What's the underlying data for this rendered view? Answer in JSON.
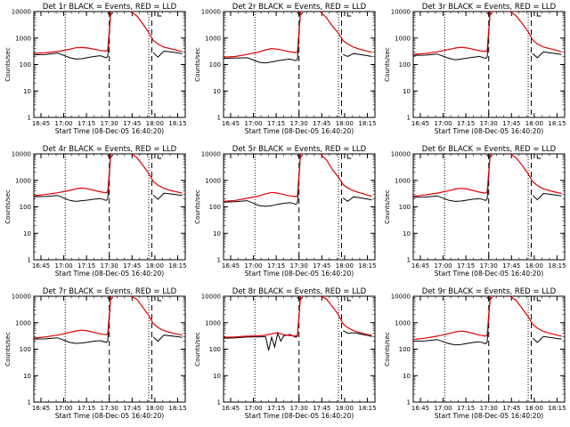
{
  "colors": {
    "events": "#000000",
    "lld": "#e00000",
    "axes": "#000000",
    "background": "#ffffff"
  },
  "common": {
    "xlabel": "Start Time (08-Dec-05 16:40:20)",
    "ylabel": "Counts/sec",
    "xticks": [
      "16:45",
      "17:00",
      "17:15",
      "17:30",
      "17:45",
      "18:00",
      "18:15"
    ],
    "yticks": [
      "1",
      "10",
      "100",
      "1000",
      "10000"
    ]
  },
  "chart_data": [
    {
      "type": "line",
      "title": "Det 1r BLACK = Events, RED = LLD",
      "xlim": [
        "16:40:20",
        "18:20"
      ],
      "ylim": [
        1,
        10000
      ],
      "yscale": "log",
      "x": [
        "16:40",
        "16:48",
        "16:56",
        "17:04",
        "17:08",
        "17:12",
        "17:16",
        "17:20",
        "17:24",
        "17:28",
        "17:29",
        "17:31",
        "17:33",
        "17:36",
        "17:40",
        "17:44",
        "17:48",
        "17:52",
        "17:56",
        "17:59",
        "18:02",
        "18:06",
        "18:10",
        "18:14",
        "18:18"
      ],
      "series": [
        {
          "name": "BLACK = Events",
          "values": [
            230,
            240,
            270,
            180,
            160,
            165,
            185,
            200,
            215,
            180,
            200,
            10000,
            10000,
            null,
            null,
            null,
            null,
            null,
            null,
            280,
            190,
            320,
            300,
            280,
            260
          ]
        },
        {
          "name": "RED = LLD",
          "values": [
            260,
            280,
            310,
            380,
            430,
            440,
            420,
            380,
            340,
            320,
            360,
            10000,
            10000,
            null,
            null,
            10000,
            7000,
            3500,
            1600,
            800,
            600,
            450,
            400,
            350,
            310
          ]
        }
      ],
      "markers": {
        "dotted": [
          "17:01",
          "17:56"
        ],
        "dashed": [
          "17:30",
          "17:58"
        ],
        "brackets": [
          "17:30",
          "18:02"
        ]
      }
    },
    {
      "type": "line",
      "title": "Det 2r BLACK = Events, RED = LLD",
      "xlim": [
        "16:40:20",
        "18:20"
      ],
      "ylim": [
        1,
        10000
      ],
      "yscale": "log",
      "x": [
        "16:40",
        "16:48",
        "16:56",
        "17:04",
        "17:08",
        "17:12",
        "17:16",
        "17:20",
        "17:24",
        "17:28",
        "17:29",
        "17:31",
        "17:33",
        "17:36",
        "17:40",
        "17:44",
        "17:48",
        "17:52",
        "17:56",
        "17:59",
        "18:02",
        "18:06",
        "18:10",
        "18:14",
        "18:18"
      ],
      "series": [
        {
          "name": "BLACK = Events",
          "values": [
            170,
            175,
            180,
            120,
            115,
            125,
            140,
            150,
            160,
            140,
            160,
            10000,
            10000,
            null,
            null,
            null,
            null,
            null,
            null,
            240,
            200,
            260,
            240,
            220,
            200
          ]
        },
        {
          "name": "RED = LLD",
          "values": [
            190,
            200,
            240,
            300,
            360,
            400,
            380,
            340,
            300,
            280,
            310,
            10000,
            10000,
            null,
            null,
            10000,
            6000,
            2800,
            1500,
            800,
            600,
            450,
            380,
            330,
            290
          ]
        }
      ],
      "markers": {
        "dotted": [
          "17:01",
          "17:56"
        ],
        "dashed": [
          "17:30",
          "17:58"
        ],
        "brackets": [
          "17:30",
          "18:02"
        ]
      }
    },
    {
      "type": "line",
      "title": "Det 3r BLACK = Events, RED = LLD",
      "xlim": [
        "16:40:20",
        "18:20"
      ],
      "ylim": [
        1,
        10000
      ],
      "yscale": "log",
      "x": [
        "16:40",
        "16:48",
        "16:56",
        "17:04",
        "17:08",
        "17:12",
        "17:16",
        "17:20",
        "17:24",
        "17:28",
        "17:29",
        "17:31",
        "17:33",
        "17:36",
        "17:40",
        "17:44",
        "17:48",
        "17:52",
        "17:56",
        "17:59",
        "18:02",
        "18:06",
        "18:10",
        "18:14",
        "18:18"
      ],
      "series": [
        {
          "name": "BLACK = Events",
          "values": [
            220,
            225,
            250,
            170,
            150,
            160,
            175,
            190,
            200,
            170,
            195,
            10000,
            10000,
            null,
            null,
            null,
            null,
            null,
            null,
            260,
            180,
            300,
            280,
            260,
            240
          ]
        },
        {
          "name": "RED = LLD",
          "values": [
            240,
            260,
            300,
            370,
            420,
            450,
            420,
            370,
            330,
            310,
            350,
            10000,
            10000,
            null,
            null,
            10000,
            7000,
            3600,
            1700,
            850,
            600,
            460,
            400,
            350,
            300
          ]
        }
      ],
      "markers": {
        "dotted": [
          "17:01",
          "17:56"
        ],
        "dashed": [
          "17:30",
          "17:58"
        ],
        "brackets": [
          "17:30",
          "18:02"
        ]
      }
    },
    {
      "type": "line",
      "title": "Det 4r BLACK = Events, RED = LLD",
      "xlim": [
        "16:40:20",
        "18:20"
      ],
      "ylim": [
        1,
        10000
      ],
      "yscale": "log",
      "x": [
        "16:40",
        "16:48",
        "16:56",
        "17:04",
        "17:08",
        "17:12",
        "17:16",
        "17:20",
        "17:24",
        "17:28",
        "17:29",
        "17:31",
        "17:33",
        "17:36",
        "17:40",
        "17:44",
        "17:48",
        "17:52",
        "17:56",
        "17:59",
        "18:02",
        "18:06",
        "18:10",
        "18:14",
        "18:18"
      ],
      "series": [
        {
          "name": "BLACK = Events",
          "values": [
            240,
            245,
            270,
            175,
            160,
            170,
            180,
            195,
            205,
            175,
            200,
            10000,
            10000,
            null,
            null,
            null,
            null,
            null,
            null,
            280,
            190,
            330,
            310,
            290,
            270
          ]
        },
        {
          "name": "RED = LLD",
          "values": [
            260,
            290,
            340,
            420,
            480,
            510,
            480,
            420,
            370,
            340,
            380,
            10000,
            10000,
            null,
            null,
            10000,
            7500,
            3800,
            1800,
            900,
            650,
            500,
            420,
            370,
            330
          ]
        }
      ],
      "markers": {
        "dotted": [
          "17:01",
          "17:56"
        ],
        "dashed": [
          "17:30",
          "17:58"
        ],
        "brackets": [
          "17:30",
          "18:02"
        ]
      }
    },
    {
      "type": "line",
      "title": "Det 5r BLACK = Events, RED = LLD",
      "xlim": [
        "16:40:20",
        "18:20"
      ],
      "ylim": [
        1,
        10000
      ],
      "yscale": "log",
      "x": [
        "16:40",
        "16:48",
        "16:56",
        "17:04",
        "17:08",
        "17:12",
        "17:16",
        "17:20",
        "17:24",
        "17:28",
        "17:29",
        "17:31",
        "17:33",
        "17:36",
        "17:40",
        "17:44",
        "17:48",
        "17:52",
        "17:56",
        "17:59",
        "18:02",
        "18:06",
        "18:10",
        "18:14",
        "18:18"
      ],
      "series": [
        {
          "name": "BLACK = Events",
          "values": [
            150,
            155,
            170,
            110,
            105,
            110,
            125,
            135,
            145,
            125,
            145,
            10000,
            10000,
            null,
            null,
            null,
            null,
            null,
            null,
            220,
            160,
            240,
            220,
            200,
            185
          ]
        },
        {
          "name": "RED = LLD",
          "values": [
            160,
            175,
            210,
            260,
            310,
            350,
            330,
            290,
            260,
            240,
            270,
            10000,
            10000,
            null,
            null,
            10000,
            6000,
            2600,
            1300,
            700,
            520,
            400,
            340,
            290,
            250
          ]
        }
      ],
      "markers": {
        "dotted": [
          "17:01",
          "17:56"
        ],
        "dashed": [
          "17:30",
          "17:58"
        ],
        "brackets": [
          "17:30",
          "18:02"
        ]
      }
    },
    {
      "type": "line",
      "title": "Det 6r BLACK = Events, RED = LLD",
      "xlim": [
        "16:40:20",
        "18:20"
      ],
      "ylim": [
        1,
        10000
      ],
      "yscale": "log",
      "x": [
        "16:40",
        "16:48",
        "16:56",
        "17:04",
        "17:08",
        "17:12",
        "17:16",
        "17:20",
        "17:24",
        "17:28",
        "17:29",
        "17:31",
        "17:33",
        "17:36",
        "17:40",
        "17:44",
        "17:48",
        "17:52",
        "17:56",
        "17:59",
        "18:02",
        "18:06",
        "18:10",
        "18:14",
        "18:18"
      ],
      "series": [
        {
          "name": "BLACK = Events",
          "values": [
            230,
            235,
            260,
            175,
            160,
            165,
            180,
            195,
            205,
            175,
            200,
            10000,
            10000,
            null,
            null,
            null,
            null,
            null,
            null,
            270,
            185,
            320,
            300,
            280,
            260
          ]
        },
        {
          "name": "RED = LLD",
          "values": [
            250,
            280,
            330,
            410,
            470,
            500,
            470,
            410,
            360,
            330,
            370,
            10000,
            10000,
            null,
            null,
            10000,
            7200,
            3700,
            1750,
            880,
            640,
            480,
            410,
            360,
            320
          ]
        }
      ],
      "markers": {
        "dotted": [
          "17:01",
          "17:56"
        ],
        "dashed": [
          "17:30",
          "17:58"
        ],
        "brackets": [
          "17:30",
          "18:02"
        ]
      }
    },
    {
      "type": "line",
      "title": "Det 7r BLACK = Events, RED = LLD",
      "xlim": [
        "16:40:20",
        "18:20"
      ],
      "ylim": [
        1,
        10000
      ],
      "yscale": "log",
      "x": [
        "16:40",
        "16:48",
        "16:56",
        "17:04",
        "17:08",
        "17:12",
        "17:16",
        "17:20",
        "17:24",
        "17:28",
        "17:29",
        "17:31",
        "17:33",
        "17:36",
        "17:40",
        "17:44",
        "17:48",
        "17:52",
        "17:56",
        "17:59",
        "18:02",
        "18:06",
        "18:10",
        "18:14",
        "18:18"
      ],
      "series": [
        {
          "name": "BLACK = Events",
          "values": [
            240,
            245,
            270,
            180,
            165,
            170,
            185,
            200,
            210,
            180,
            205,
            10000,
            10000,
            null,
            null,
            null,
            null,
            null,
            null,
            290,
            200,
            340,
            320,
            300,
            280
          ]
        },
        {
          "name": "RED = LLD",
          "values": [
            260,
            290,
            340,
            430,
            490,
            520,
            490,
            430,
            380,
            350,
            390,
            10000,
            10000,
            null,
            null,
            10000,
            7800,
            3900,
            1850,
            920,
            660,
            500,
            430,
            380,
            340
          ]
        }
      ],
      "markers": {
        "dotted": [
          "17:01",
          "17:56"
        ],
        "dashed": [
          "17:30",
          "17:58"
        ],
        "brackets": [
          "17:30",
          "18:02"
        ]
      }
    },
    {
      "type": "line",
      "title": "Det 8r BLACK = Events, RED = LLD",
      "xlim": [
        "16:40:20",
        "18:20"
      ],
      "ylim": [
        1,
        10000
      ],
      "yscale": "log",
      "x": [
        "16:40",
        "16:48",
        "16:56",
        "17:04",
        "17:08",
        "17:10",
        "17:12",
        "17:14",
        "17:16",
        "17:18",
        "17:20",
        "17:24",
        "17:28",
        "17:29",
        "17:31",
        "17:33",
        "17:36",
        "17:40",
        "17:44",
        "17:48",
        "17:52",
        "17:56",
        "17:59",
        "18:02",
        "18:06",
        "18:10",
        "18:14",
        "18:18"
      ],
      "series": [
        {
          "name": "BLACK = Events",
          "values": [
            260,
            265,
            290,
            290,
            300,
            90,
            280,
            120,
            400,
            200,
            320,
            360,
            280,
            320,
            10000,
            10000,
            null,
            null,
            null,
            null,
            null,
            null,
            500,
            400,
            420,
            380,
            340,
            300
          ]
        },
        {
          "name": "RED = LLD",
          "values": [
            280,
            290,
            310,
            320,
            340,
            360,
            380,
            400,
            420,
            380,
            350,
            330,
            310,
            350,
            10000,
            10000,
            null,
            null,
            10000,
            8000,
            4000,
            2000,
            900,
            650,
            500,
            420,
            370,
            330
          ]
        }
      ],
      "markers": {
        "dotted": [
          "17:01",
          "17:56"
        ],
        "dashed": [
          "17:30",
          "17:58"
        ],
        "brackets": [
          "17:30",
          "18:02"
        ]
      }
    },
    {
      "type": "line",
      "title": "Det 9r BLACK = Events, RED = LLD",
      "xlim": [
        "16:40:20",
        "18:20"
      ],
      "ylim": [
        1,
        10000
      ],
      "yscale": "log",
      "x": [
        "16:40",
        "16:48",
        "16:56",
        "17:04",
        "17:08",
        "17:12",
        "17:16",
        "17:20",
        "17:24",
        "17:28",
        "17:29",
        "17:31",
        "17:33",
        "17:36",
        "17:40",
        "17:44",
        "17:48",
        "17:52",
        "17:56",
        "17:59",
        "18:02",
        "18:06",
        "18:10",
        "18:14",
        "18:18"
      ],
      "series": [
        {
          "name": "BLACK = Events",
          "values": [
            200,
            205,
            230,
            160,
            145,
            150,
            165,
            180,
            190,
            160,
            185,
            10000,
            10000,
            null,
            null,
            null,
            null,
            null,
            null,
            260,
            180,
            300,
            280,
            260,
            240
          ]
        },
        {
          "name": "RED = LLD",
          "values": [
            230,
            260,
            310,
            390,
            450,
            480,
            450,
            390,
            340,
            310,
            350,
            10000,
            10000,
            null,
            null,
            10000,
            7000,
            3500,
            1700,
            850,
            620,
            470,
            400,
            350,
            310
          ]
        }
      ],
      "markers": {
        "dotted": [
          "17:01",
          "17:56"
        ],
        "dashed": [
          "17:30",
          "17:58"
        ],
        "brackets": [
          "17:30",
          "18:02"
        ]
      }
    }
  ]
}
